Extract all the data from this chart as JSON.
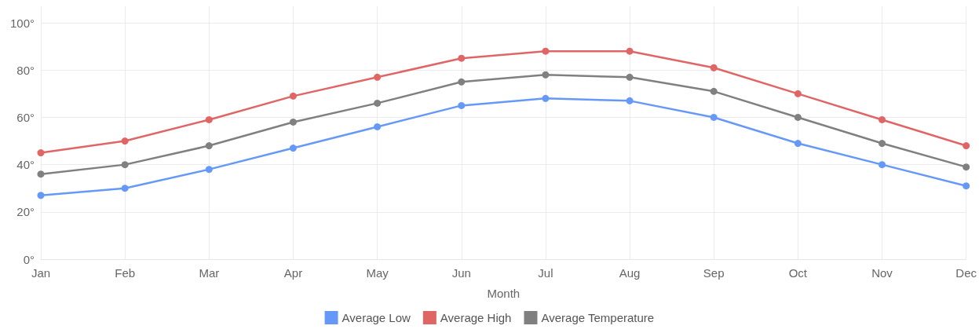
{
  "chart_data": {
    "type": "line",
    "xlabel": "Month",
    "categories": [
      "Jan",
      "Feb",
      "Mar",
      "Apr",
      "May",
      "Jun",
      "Jul",
      "Aug",
      "Sep",
      "Oct",
      "Nov",
      "Dec"
    ],
    "series": [
      {
        "name": "Average Low",
        "color": "#6699f7",
        "values": [
          27,
          30,
          38,
          47,
          56,
          65,
          68,
          67,
          60,
          49,
          40,
          31
        ]
      },
      {
        "name": "Average High",
        "color": "#e06666",
        "values": [
          45,
          50,
          59,
          69,
          77,
          85,
          88,
          88,
          81,
          70,
          59,
          48
        ]
      },
      {
        "name": "Average Temperature",
        "color": "#808080",
        "values": [
          36,
          40,
          48,
          58,
          66,
          75,
          78,
          77,
          71,
          60,
          49,
          39
        ]
      }
    ],
    "ylim": [
      0,
      107
    ],
    "yticks": [
      {
        "value": 0,
        "label": "0°"
      },
      {
        "value": 20,
        "label": "20°"
      },
      {
        "value": 40,
        "label": "40°"
      },
      {
        "value": 60,
        "label": "60°"
      },
      {
        "value": 80,
        "label": "80°"
      },
      {
        "value": 100,
        "label": "100°"
      }
    ],
    "grid": true,
    "legend": "bottom",
    "marker": "circle",
    "line_style": "solid"
  }
}
